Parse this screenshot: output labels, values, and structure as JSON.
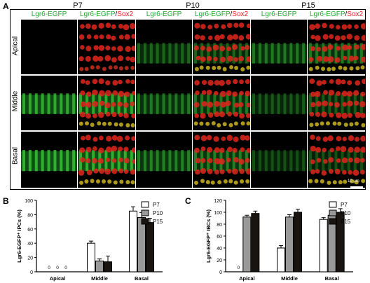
{
  "panel_a": {
    "letter": "A",
    "ages": [
      "P7",
      "P10",
      "P15"
    ],
    "channel_single": "Lgr6-EGFP",
    "channel_merge_green": "Lgr6-EGFP",
    "channel_merge_sep": "/",
    "channel_merge_red": "Sox2",
    "rows": [
      "Apical",
      "Middle",
      "Basal"
    ],
    "scale_bar": "10 μm",
    "colors": {
      "green": "#22a832",
      "red": "#e8202a"
    }
  },
  "chart_data": [
    {
      "panel": "B",
      "type": "bar",
      "ylabel": "Lgr6-EGFP⁺ IPCs (%)",
      "xlabel": "",
      "categories": [
        "Apical",
        "Middle",
        "Basal"
      ],
      "ylim": [
        0,
        100
      ],
      "yticks": [
        0,
        20,
        40,
        60,
        80,
        100
      ],
      "legend_position": "top-right",
      "series": [
        {
          "name": "P7",
          "color": "#ffffff",
          "values": [
            0,
            40,
            85
          ],
          "errors": [
            0,
            3,
            6
          ]
        },
        {
          "name": "P10",
          "color": "#999999",
          "values": [
            0,
            15,
            76
          ],
          "errors": [
            0,
            3,
            7
          ]
        },
        {
          "name": "P15",
          "color": "#1a1410",
          "values": [
            0,
            14,
            69
          ],
          "errors": [
            0,
            8,
            6
          ]
        }
      ],
      "zero_marker": "0"
    },
    {
      "panel": "C",
      "type": "bar",
      "ylabel": "Lgr6-EGFP⁺ IBCs (%)",
      "xlabel": "",
      "categories": [
        "Apical",
        "Middle",
        "Basal"
      ],
      "ylim": [
        0,
        120
      ],
      "yticks": [
        0,
        20,
        40,
        60,
        80,
        100,
        120
      ],
      "legend_position": "top-right",
      "series": [
        {
          "name": "P7",
          "color": "#ffffff",
          "values": [
            0,
            40,
            88
          ],
          "errors": [
            0,
            4,
            3
          ]
        },
        {
          "name": "P10",
          "color": "#999999",
          "values": [
            92,
            92,
            95
          ],
          "errors": [
            3,
            4,
            5
          ]
        },
        {
          "name": "P15",
          "color": "#1a1410",
          "values": [
            98,
            100,
            100
          ],
          "errors": [
            4,
            5,
            6
          ]
        }
      ],
      "zero_marker": "0"
    }
  ]
}
